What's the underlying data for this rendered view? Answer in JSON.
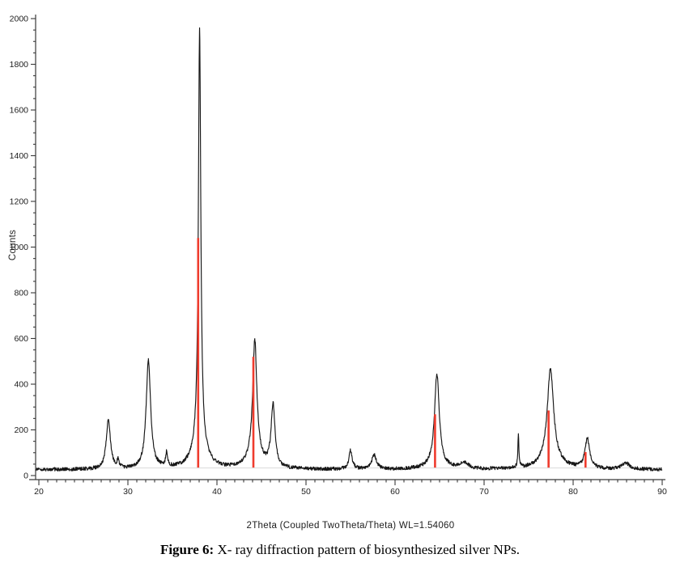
{
  "figure": {
    "caption_label": "Figure 6:",
    "caption_text": "X- ray diffraction pattern of biosynthesized silver NPs."
  },
  "chart_data": {
    "type": "line",
    "title": "",
    "xlabel": "2Theta (Coupled TwoTheta/Theta) WL=1.54060",
    "ylabel": "Counts",
    "xlim": [
      20,
      90
    ],
    "ylim": [
      0,
      2000
    ],
    "x_major_ticks": [
      20,
      30,
      40,
      50,
      60,
      70,
      80,
      90
    ],
    "x_minor_step": 1,
    "y_major_ticks": [
      0,
      200,
      400,
      600,
      800,
      1000,
      1200,
      1400,
      1600,
      1800,
      2000
    ],
    "y_minor_step": 50,
    "grid": false,
    "legend": "none",
    "trace_color": "#161616",
    "axis_color": "#3a3a3a",
    "background_fit_color": "#d9d9d9",
    "background_fit_counts": 33,
    "baseline_counts": 26,
    "noise_counts": 8,
    "peaks": [
      {
        "two_theta": 27.8,
        "intensity": 215,
        "width": 0.28
      },
      {
        "two_theta": 28.9,
        "intensity": 35,
        "width": 0.12
      },
      {
        "two_theta": 32.3,
        "intensity": 475,
        "width": 0.3
      },
      {
        "two_theta": 34.35,
        "intensity": 62,
        "width": 0.13
      },
      {
        "two_theta": 38.05,
        "intensity": 1815,
        "width": 0.16
      },
      {
        "two_theta": 38.05,
        "intensity": 110,
        "width": 0.85
      },
      {
        "two_theta": 44.25,
        "intensity": 500,
        "width": 0.27
      },
      {
        "two_theta": 44.25,
        "intensity": 62,
        "width": 0.85
      },
      {
        "two_theta": 46.3,
        "intensity": 275,
        "width": 0.26
      },
      {
        "two_theta": 55.0,
        "intensity": 82,
        "width": 0.22
      },
      {
        "two_theta": 57.65,
        "intensity": 64,
        "width": 0.3
      },
      {
        "two_theta": 64.7,
        "intensity": 390,
        "width": 0.31
      },
      {
        "two_theta": 64.7,
        "intensity": 28,
        "width": 1.0
      },
      {
        "two_theta": 67.8,
        "intensity": 26,
        "width": 0.5
      },
      {
        "two_theta": 73.85,
        "intensity": 142,
        "width": 0.07
      },
      {
        "two_theta": 77.45,
        "intensity": 395,
        "width": 0.42
      },
      {
        "two_theta": 77.45,
        "intensity": 42,
        "width": 1.3
      },
      {
        "two_theta": 81.6,
        "intensity": 128,
        "width": 0.32
      },
      {
        "two_theta": 85.9,
        "intensity": 26,
        "width": 0.55
      }
    ],
    "reference_lines": {
      "color": "#ef3b2d",
      "lines": [
        {
          "two_theta": 38.0,
          "intensity": 1040
        },
        {
          "two_theta": 44.2,
          "intensity": 520
        },
        {
          "two_theta": 64.6,
          "intensity": 268
        },
        {
          "two_theta": 77.35,
          "intensity": 285
        },
        {
          "two_theta": 81.5,
          "intensity": 103
        }
      ]
    }
  }
}
